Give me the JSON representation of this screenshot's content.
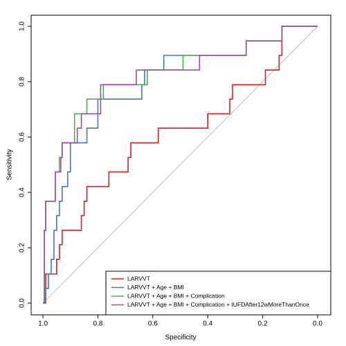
{
  "chart_data": {
    "type": "roc-step",
    "x_label": "Specificity",
    "y_label": "Sensitivity",
    "xlim": [
      1.043,
      -0.048
    ],
    "ylim": [
      -0.0425,
      1.04
    ],
    "xticks": [
      {
        "value": 1,
        "label": "1.0"
      },
      {
        "value": 0.8,
        "label": "0.8"
      },
      {
        "value": 0.6,
        "label": "0.6"
      },
      {
        "value": 0.4,
        "label": "0.4"
      },
      {
        "value": 0.2,
        "label": "0.2"
      },
      {
        "value": 0,
        "label": "0.0"
      }
    ],
    "yticks": [
      {
        "value": 0,
        "label": "0.0"
      },
      {
        "value": 0.2,
        "label": "0.2"
      },
      {
        "value": 0.4,
        "label": "0.4"
      },
      {
        "value": 0.6,
        "label": "0.6"
      },
      {
        "value": 0.8,
        "label": "0.8"
      },
      {
        "value": 1,
        "label": "1.0"
      }
    ],
    "diagonal_color": "#bbbbbb",
    "legend": "bottomright",
    "series": [
      {
        "name": "LARVVT",
        "color": "#e41a1c",
        "x": [
          1.0,
          0.99,
          0.99,
          0.95,
          0.95,
          0.94,
          0.94,
          0.93,
          0.93,
          0.86,
          0.86,
          0.85,
          0.85,
          0.84,
          0.84,
          0.76,
          0.76,
          0.69,
          0.69,
          0.68,
          0.68,
          0.58,
          0.58,
          0.4,
          0.4,
          0.32,
          0.32,
          0.31,
          0.31,
          0.19,
          0.19,
          0.14,
          0.14,
          0.13,
          0.13,
          0.0
        ],
        "values": [
          0.0,
          0.0,
          0.105,
          0.105,
          0.158,
          0.158,
          0.211,
          0.211,
          0.263,
          0.263,
          0.316,
          0.316,
          0.368,
          0.368,
          0.421,
          0.421,
          0.474,
          0.474,
          0.526,
          0.526,
          0.579,
          0.579,
          0.632,
          0.632,
          0.684,
          0.684,
          0.737,
          0.737,
          0.789,
          0.789,
          0.842,
          0.842,
          0.895,
          0.895,
          1.0,
          1.0
        ]
      },
      {
        "name": "LARVVT + Age + BMI",
        "color": "#377eb8",
        "x": [
          1.0,
          0.99,
          0.99,
          0.98,
          0.98,
          0.97,
          0.97,
          0.96,
          0.96,
          0.95,
          0.95,
          0.94,
          0.94,
          0.93,
          0.93,
          0.91,
          0.91,
          0.9,
          0.9,
          0.84,
          0.84,
          0.8,
          0.8,
          0.64,
          0.64,
          0.63,
          0.63,
          0.56,
          0.56,
          0.26,
          0.26,
          0.13,
          0.13,
          0.0
        ],
        "values": [
          0.0,
          0.0,
          0.053,
          0.053,
          0.105,
          0.105,
          0.158,
          0.158,
          0.263,
          0.263,
          0.316,
          0.316,
          0.368,
          0.368,
          0.421,
          0.421,
          0.474,
          0.474,
          0.579,
          0.579,
          0.632,
          0.632,
          0.737,
          0.737,
          0.789,
          0.789,
          0.842,
          0.842,
          0.895,
          0.895,
          0.947,
          0.947,
          1.0,
          1.0
        ]
      },
      {
        "name": "LARVVT + Age + BMI + Complication",
        "color": "#4daf4a",
        "x": [
          1.0,
          0.995,
          0.995,
          0.99,
          0.99,
          0.955,
          0.955,
          0.94,
          0.94,
          0.93,
          0.93,
          0.885,
          0.885,
          0.84,
          0.84,
          0.78,
          0.78,
          0.62,
          0.62,
          0.49,
          0.49,
          0.26,
          0.26,
          0.13,
          0.13,
          0.0
        ],
        "values": [
          0.0,
          0.0,
          0.263,
          0.263,
          0.368,
          0.368,
          0.474,
          0.474,
          0.526,
          0.526,
          0.579,
          0.579,
          0.684,
          0.684,
          0.737,
          0.737,
          0.789,
          0.789,
          0.842,
          0.842,
          0.895,
          0.895,
          0.947,
          0.947,
          1.0,
          1.0
        ]
      },
      {
        "name": "LARVVT + Age + BMI + Complication + IUFDAfter12wMoreThanOnce",
        "color": "#984ea3",
        "x": [
          1.0,
          0.995,
          0.995,
          0.99,
          0.99,
          0.955,
          0.955,
          0.935,
          0.935,
          0.93,
          0.93,
          0.875,
          0.875,
          0.86,
          0.86,
          0.79,
          0.79,
          0.66,
          0.66,
          0.43,
          0.43,
          0.26,
          0.26,
          0.13,
          0.13,
          0.0
        ],
        "values": [
          0.0,
          0.0,
          0.263,
          0.263,
          0.368,
          0.368,
          0.474,
          0.474,
          0.526,
          0.526,
          0.579,
          0.579,
          0.632,
          0.632,
          0.684,
          0.684,
          0.789,
          0.789,
          0.842,
          0.842,
          0.895,
          0.895,
          0.947,
          0.947,
          1.0,
          1.0
        ]
      }
    ]
  }
}
